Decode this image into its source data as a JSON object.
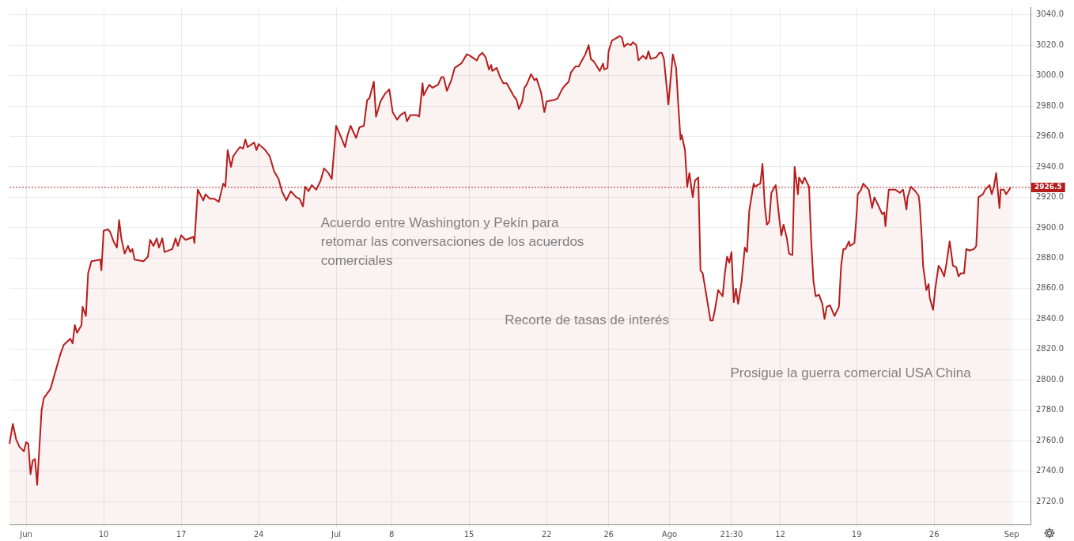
{
  "chart_data": {
    "type": "area",
    "grid": true,
    "legend": false,
    "marker": "none",
    "line_style": "solid",
    "categories": [
      null,
      null,
      null,
      null,
      null,
      null,
      null,
      null,
      null,
      null,
      null,
      null,
      null,
      null,
      null,
      "Jun",
      null,
      null,
      null,
      null,
      null,
      null,
      null,
      null,
      null,
      null,
      null,
      null,
      null,
      null,
      null,
      null,
      null,
      null,
      null,
      null,
      null,
      null,
      null,
      null,
      null,
      null,
      null,
      null,
      null,
      null,
      null,
      null,
      null,
      null,
      null,
      null,
      null,
      null,
      null,
      null,
      null,
      null,
      null,
      null,
      null,
      null,
      null,
      null,
      null,
      null,
      null,
      null,
      null,
      null,
      null,
      null,
      null,
      null,
      null,
      null,
      null,
      null,
      null,
      null,
      null,
      null,
      null,
      null,
      null,
      "10",
      null,
      null,
      null,
      null,
      null,
      null,
      null,
      null,
      null,
      null,
      null,
      null,
      null,
      null,
      null,
      null,
      null,
      null,
      null,
      null,
      null,
      null,
      null,
      null,
      null,
      null,
      null,
      null,
      null,
      null,
      null,
      null,
      null,
      null,
      null,
      null,
      null,
      null,
      null,
      null,
      null,
      null,
      null,
      null,
      null,
      null,
      null,
      null,
      null,
      null,
      null,
      null,
      null,
      null,
      null,
      null,
      null,
      null,
      null,
      null,
      null,
      null,
      null,
      null,
      null,
      null,
      null,
      null,
      null,
      "17",
      null,
      null,
      null,
      null,
      null,
      null,
      null,
      null,
      null,
      null,
      null,
      null,
      null,
      null,
      null,
      null,
      null,
      null,
      null,
      null,
      null,
      null,
      null,
      null,
      null,
      null,
      null,
      null,
      null,
      null,
      null,
      null,
      null,
      null,
      null,
      null,
      null,
      null,
      null,
      null,
      null,
      null,
      null,
      null,
      null,
      null,
      null,
      null,
      null,
      null,
      null,
      null,
      null,
      null,
      null,
      null,
      null,
      null,
      null,
      null,
      null,
      null,
      null,
      null,
      null,
      null,
      null,
      null,
      null,
      "24",
      null,
      null,
      null,
      null,
      null,
      null,
      null,
      null,
      null,
      null,
      null,
      null,
      null,
      null,
      null,
      null,
      null,
      null,
      null,
      null,
      null,
      null,
      null,
      null,
      null,
      null,
      null,
      null,
      null,
      null,
      null,
      null,
      null,
      null,
      null,
      null,
      null,
      null,
      null,
      null,
      null,
      null,
      null,
      null,
      null,
      null,
      null,
      null,
      null,
      null,
      null,
      null,
      null,
      null,
      null,
      null,
      null,
      null,
      null,
      null,
      null,
      null,
      null,
      null,
      null,
      null,
      null,
      null,
      null,
      "Jul",
      null,
      null,
      null,
      null,
      null,
      null,
      null,
      null,
      null,
      null,
      null,
      null,
      null,
      null,
      null,
      null,
      null,
      null,
      null,
      null,
      null,
      null,
      null,
      null,
      null,
      null,
      null,
      null,
      null,
      null,
      null,
      null,
      null,
      null,
      null,
      null,
      null,
      null,
      null,
      null,
      null,
      null,
      null,
      null,
      null,
      null,
      null,
      null,
      null,
      "8",
      null,
      null,
      null,
      null,
      null,
      null,
      null,
      null,
      null,
      null,
      null,
      null,
      null,
      null,
      null,
      null,
      null,
      null,
      null,
      null,
      null,
      null,
      null,
      null,
      null,
      null,
      null,
      null,
      null,
      null,
      null,
      null,
      null,
      null,
      null,
      null,
      null,
      null,
      null,
      null,
      null,
      null,
      null,
      null,
      null,
      null,
      null,
      null,
      null,
      null,
      null,
      null,
      null,
      null,
      null,
      null,
      null,
      null,
      null,
      null,
      null,
      null,
      null,
      null,
      null,
      null,
      null,
      null,
      null,
      "15",
      null,
      null,
      null,
      null,
      null,
      null,
      null,
      null,
      null,
      null,
      null,
      null,
      null,
      null,
      null,
      null,
      null,
      null,
      null,
      null,
      null,
      null,
      null,
      null,
      null,
      null,
      null,
      null,
      null,
      null,
      null,
      null,
      null,
      null,
      null,
      null,
      null,
      null,
      null,
      null,
      null,
      null,
      null,
      null,
      null,
      null,
      null,
      null,
      null,
      null,
      null,
      null,
      null,
      null,
      null,
      null,
      null,
      null,
      null,
      null,
      null,
      null,
      null,
      null,
      null,
      null,
      null,
      null,
      null,
      "22",
      null,
      null,
      null,
      null,
      null,
      null,
      null,
      null,
      null,
      null,
      null,
      null,
      null,
      null,
      null,
      null,
      null,
      null,
      null,
      null,
      null,
      null,
      null,
      null,
      null,
      null,
      null,
      null,
      null,
      null,
      null,
      null,
      null,
      null,
      null,
      null,
      null,
      null,
      null,
      null,
      null,
      null,
      null,
      null,
      null,
      null,
      null,
      null,
      null,
      null,
      null,
      null,
      null,
      null,
      null,
      "26",
      null,
      null,
      null,
      null,
      null,
      null,
      null,
      null,
      null,
      null,
      null,
      null,
      null,
      null,
      null,
      null,
      null,
      null,
      null,
      null,
      null,
      null,
      null,
      null,
      null,
      null,
      null,
      null,
      null,
      null,
      null,
      null,
      null,
      null,
      null,
      null,
      null,
      null,
      null,
      null,
      null,
      null,
      null,
      null,
      null,
      null,
      null,
      null,
      null,
      null,
      null,
      null,
      null,
      null,
      "Ago",
      null,
      null,
      null,
      null,
      null,
      null,
      null,
      null,
      null,
      null,
      null,
      null,
      null,
      null,
      null,
      null,
      null,
      null,
      null,
      null,
      null,
      null,
      null,
      null,
      null,
      null,
      null,
      null,
      null,
      null,
      null,
      null,
      null,
      null,
      null,
      null,
      null,
      null,
      null,
      null,
      null,
      null,
      null,
      null,
      null,
      null,
      null,
      null,
      null,
      null,
      null,
      null,
      null,
      null,
      null,
      "21:30",
      null,
      null,
      null,
      null,
      null,
      null,
      null,
      null,
      null,
      null,
      null,
      null,
      null,
      null,
      null,
      null,
      null,
      null,
      null,
      null,
      null,
      null,
      null,
      null,
      null,
      null,
      null,
      null,
      null,
      null,
      null,
      null,
      null,
      null,
      null,
      null,
      null,
      null,
      null,
      null,
      null,
      null,
      null,
      "12",
      null,
      null,
      null,
      null,
      null,
      null,
      null,
      null,
      null,
      null,
      null,
      null,
      null,
      null,
      null,
      null,
      null,
      null,
      null,
      null,
      null,
      null,
      null,
      null,
      null,
      null,
      null,
      null,
      null,
      null,
      null,
      null,
      null,
      null,
      null,
      null,
      null,
      null,
      null,
      null,
      null,
      null,
      null,
      null,
      null,
      null,
      null,
      null,
      null,
      null,
      null,
      null,
      null,
      null,
      null,
      null,
      null,
      null,
      null,
      null,
      null,
      null,
      null,
      null,
      null,
      null,
      null,
      null,
      "19",
      null,
      null,
      null,
      null,
      null,
      null,
      null,
      null,
      null,
      null,
      null,
      null,
      null,
      null,
      null,
      null,
      null,
      null,
      null,
      null,
      null,
      null,
      null,
      null,
      null,
      null,
      null,
      null,
      null,
      null,
      null,
      null,
      null,
      null,
      null,
      null,
      null,
      null,
      null,
      null,
      null,
      null,
      null,
      null,
      null,
      null,
      null,
      null,
      null,
      null,
      null,
      null,
      null,
      null,
      null,
      null,
      null,
      null,
      null,
      null,
      null,
      null,
      null,
      null,
      null,
      null,
      null,
      null,
      null,
      "26",
      null,
      null,
      null,
      null,
      null,
      null,
      null,
      null,
      null,
      null,
      null,
      null,
      null,
      null,
      null,
      null,
      null,
      null,
      null,
      null,
      null,
      null,
      null,
      null,
      null,
      null,
      null,
      null,
      null,
      null,
      null,
      null,
      null,
      null,
      null,
      null,
      null,
      null,
      null,
      null,
      null,
      null,
      null,
      null,
      null,
      null,
      null,
      null,
      null,
      null,
      null,
      null,
      null,
      null,
      null,
      null,
      null,
      null,
      null,
      null,
      null,
      null,
      null,
      null,
      null,
      null,
      null,
      null,
      null,
      "Sep",
      null,
      null,
      null,
      null,
      null,
      null,
      null,
      null,
      null,
      null,
      null,
      null,
      null,
      null,
      null,
      null,
      null
    ],
    "ylim": [
      2705,
      3045
    ],
    "yticks": [
      {
        "value": 2720,
        "label": "2720.0"
      },
      {
        "value": 2740,
        "label": "2740.0"
      },
      {
        "value": 2760,
        "label": "2760.0"
      },
      {
        "value": 2780,
        "label": "2780.0"
      },
      {
        "value": 2800,
        "label": "2800.0"
      },
      {
        "value": 2820,
        "label": "2820.0"
      },
      {
        "value": 2840,
        "label": "2840.0"
      },
      {
        "value": 2860,
        "label": "2860.0"
      },
      {
        "value": 2880,
        "label": "2880.0"
      },
      {
        "value": 2900,
        "label": "2900.0"
      },
      {
        "value": 2920,
        "label": "2920.0"
      },
      {
        "value": 2940,
        "label": "2940.0"
      },
      {
        "value": 2960,
        "label": "2960.0"
      },
      {
        "value": 2980,
        "label": "2980.0"
      },
      {
        "value": 3000,
        "label": "3000.0"
      },
      {
        "value": 3020,
        "label": "3020.0"
      },
      {
        "value": 3040,
        "label": "3040.0"
      }
    ],
    "ref_lines": [
      {
        "axis": "y",
        "value": 2926.5,
        "label": "2926.5",
        "color": "#b71c1c",
        "line_style": "dotted"
      }
    ],
    "annotations": [
      "Acuerdo entre Washington y Pekín para retomar las conversaciones de los acuerdos comerciales",
      "Recorte de tasas de interés",
      "Prosigue la guerra comercial USA China"
    ],
    "series": [
      {
        "color": "#b71c1c",
        "values": [
          2758,
          null,
          null,
          2771,
          null,
          null,
          2761,
          null,
          null,
          2756,
          null,
          null,
          null,
          2753,
          null,
          2759,
          null,
          2758,
          null,
          2738,
          null,
          2747,
          null,
          2748,
          null,
          2731,
          null,
          null,
          null,
          2780,
          null,
          2788,
          null,
          null,
          null,
          null,
          null,
          2794,
          null,
          null,
          null,
          null,
          null,
          null,
          null,
          null,
          2817,
          null,
          null,
          2823,
          null,
          null,
          null,
          null,
          null,
          2827,
          null,
          2824,
          null,
          2836,
          null,
          2831,
          null,
          null,
          null,
          2836,
          2848,
          null,
          null,
          2842,
          null,
          2870,
          null,
          null,
          2878,
          null,
          null,
          null,
          null,
          null,
          null,
          null,
          2879,
          2872,
          null,
          2898,
          null,
          null,
          null,
          2899,
          null,
          2897,
          null,
          null,
          2891,
          null,
          null,
          2887,
          null,
          2905,
          null,
          2893,
          null,
          null,
          2883,
          null,
          null,
          2888,
          null,
          2884,
          null,
          2886,
          null,
          2879,
          null,
          null,
          null,
          null,
          null,
          null,
          null,
          2878,
          null,
          null,
          null,
          2881,
          null,
          2892,
          null,
          null,
          2888,
          null,
          null,
          2893,
          null,
          2887,
          null,
          null,
          2893,
          null,
          2884,
          null,
          null,
          null,
          null,
          null,
          null,
          2886,
          null,
          null,
          2893,
          null,
          2888,
          null,
          null,
          2895,
          null,
          null,
          null,
          2892,
          null,
          null,
          null,
          null,
          null,
          null,
          2894,
          2890,
          null,
          null,
          2925,
          null,
          null,
          null,
          null,
          2918,
          null,
          2922,
          null,
          null,
          null,
          2919,
          null,
          null,
          null,
          2919,
          null,
          null,
          null,
          2917,
          null,
          null,
          null,
          2929,
          null,
          2927,
          null,
          2951,
          null,
          null,
          2940,
          null,
          2947,
          null,
          null,
          null,
          null,
          null,
          2953,
          null,
          null,
          2952,
          null,
          2958,
          null,
          2953,
          null,
          null,
          null,
          null,
          null,
          2956,
          null,
          2951,
          null,
          2955,
          null,
          null,
          null,
          null,
          null,
          2951,
          null,
          null,
          null,
          2947,
          null,
          null,
          null,
          2937,
          null,
          null,
          null,
          2932,
          null,
          null,
          2924,
          null,
          null,
          null,
          2918,
          null,
          null,
          null,
          2924,
          null,
          null,
          null,
          null,
          2920,
          null,
          null,
          2919,
          null,
          null,
          2914,
          null,
          2927,
          null,
          null,
          2924,
          null,
          null,
          2928,
          null,
          null,
          null,
          2925,
          null,
          null,
          null,
          2931,
          null,
          null,
          2939,
          null,
          null,
          null,
          2936,
          null,
          null,
          2932,
          null,
          null,
          null,
          2967,
          null,
          null,
          2962,
          null,
          null,
          null,
          null,
          2953,
          null,
          2960,
          null,
          null,
          2967,
          null,
          null,
          null,
          null,
          2959,
          null,
          null,
          2966,
          null,
          null,
          null,
          2967,
          null,
          null,
          2984,
          null,
          2985,
          null,
          null,
          null,
          2996,
          null,
          2973,
          null,
          null,
          null,
          2983,
          null,
          null,
          null,
          2988,
          null,
          null,
          null,
          2991,
          null,
          null,
          2976,
          null,
          null,
          null,
          2971,
          null,
          null,
          2974,
          null,
          null,
          null,
          2976,
          null,
          2970,
          null,
          null,
          2974,
          null,
          null,
          null,
          null,
          null,
          2974,
          null,
          2973,
          null,
          null,
          2995,
          2987,
          null,
          null,
          null,
          null,
          2994,
          null,
          null,
          2992,
          null,
          null,
          null,
          null,
          2994,
          null,
          null,
          2999,
          null,
          2999,
          null,
          null,
          2990,
          null,
          null,
          null,
          2997,
          null,
          null,
          3005,
          null,
          null,
          null,
          null,
          null,
          3008,
          null,
          null,
          null,
          null,
          3014,
          null,
          null,
          3013,
          null,
          null,
          null,
          null,
          null,
          3010,
          null,
          3013,
          null,
          null,
          3015,
          null,
          null,
          3012,
          null,
          null,
          3004,
          null,
          3007,
          3003,
          null,
          null,
          null,
          3005,
          null,
          null,
          2999,
          null,
          null,
          2995,
          null,
          null,
          2995,
          null,
          null,
          null,
          null,
          null,
          2987,
          null,
          null,
          2984,
          null,
          2978,
          null,
          null,
          2983,
          null,
          2992,
          null,
          2994,
          null,
          null,
          null,
          3001,
          null,
          null,
          2997,
          null,
          2998,
          null,
          null,
          null,
          2989,
          null,
          null,
          2976,
          null,
          2983,
          null,
          null,
          null,
          null,
          null,
          null,
          2984,
          null,
          null,
          2985,
          null,
          null,
          null,
          2991,
          null,
          2993,
          null,
          null,
          null,
          2996,
          null,
          3002,
          null,
          null,
          null,
          3006,
          null,
          null,
          3006,
          null,
          null,
          3010,
          null,
          null,
          3014,
          null,
          null,
          3020,
          null,
          3011,
          null,
          null,
          3009,
          null,
          null,
          null,
          null,
          3003,
          null,
          null,
          3008,
          3004,
          null,
          null,
          3005,
          3016,
          null,
          null,
          3023,
          null,
          null,
          null,
          null,
          null,
          null,
          3026,
          null,
          3025,
          null,
          3019,
          null,
          null,
          3021,
          null,
          null,
          3020,
          null,
          3022,
          null,
          null,
          3020,
          null,
          3010,
          null,
          null,
          null,
          3013,
          null,
          null,
          3011,
          null,
          3016,
          null,
          3011,
          null,
          null,
          null,
          null,
          3012,
          null,
          null,
          3015,
          null,
          3015,
          null,
          3011,
          null,
          null,
          null,
          2981,
          null,
          null,
          null,
          3014,
          null,
          null,
          3005,
          null,
          2980,
          null,
          2958,
          2961,
          null,
          null,
          2951,
          null,
          2927,
          null,
          2936,
          null,
          null,
          2920,
          null,
          2931,
          null,
          null,
          2933,
          null,
          2872,
          null,
          2870,
          null,
          null,
          2857,
          null,
          null,
          null,
          2839,
          null,
          2839,
          null,
          2846,
          null,
          null,
          2859,
          null,
          null,
          null,
          2855,
          null,
          2870,
          null,
          2881,
          null,
          2877,
          null,
          2884,
          null,
          2851,
          null,
          2860,
          null,
          2850,
          null,
          null,
          2864,
          null,
          null,
          2887,
          null,
          2884,
          null,
          2911,
          null,
          null,
          null,
          2929,
          2927,
          null,
          null,
          null,
          null,
          2929,
          null,
          2942,
          null,
          2915,
          null,
          2902,
          null,
          2904,
          null,
          2923,
          null,
          null,
          null,
          2928,
          null,
          null,
          2907,
          null,
          2895,
          null,
          2902,
          null,
          null,
          2893,
          null,
          2883,
          null,
          null,
          2882,
          null,
          2940,
          null,
          null,
          2922,
          2933,
          null,
          null,
          2929,
          null,
          2933,
          null,
          null,
          null,
          2927,
          null,
          2891,
          null,
          2865,
          null,
          2855,
          null,
          null,
          2856,
          null,
          null,
          2850,
          null,
          2840,
          null,
          2848,
          null,
          null,
          2849,
          null,
          null,
          null,
          2842,
          null,
          null,
          null,
          2848,
          null,
          2875,
          null,
          2886,
          null,
          2886,
          null,
          null,
          2891,
          2888,
          null,
          null,
          null,
          2890,
          null,
          2909,
          2922,
          null,
          null,
          2925,
          null,
          2929,
          null,
          null,
          null,
          null,
          2925,
          null,
          null,
          2913,
          null,
          2920,
          null,
          null,
          null,
          2914,
          null,
          null,
          2909,
          null,
          2910,
          2901,
          null,
          null,
          2925,
          null,
          null,
          null,
          null,
          null,
          2925,
          null,
          null,
          null,
          2923,
          null,
          null,
          2925,
          null,
          null,
          2912,
          2920,
          null,
          null,
          2927,
          null,
          null,
          null,
          2924,
          null,
          null,
          2921,
          2915,
          null,
          2891,
          2875,
          null,
          null,
          2859,
          null,
          2863,
          2854,
          null,
          null,
          2846,
          null,
          2860,
          null,
          null,
          2875,
          null,
          2873,
          null,
          null,
          2868,
          null,
          2876,
          null,
          null,
          2891,
          null,
          null,
          2875,
          null,
          null,
          2874,
          null,
          2868,
          null,
          2870,
          null,
          null,
          2870,
          null,
          2886,
          null,
          null,
          2885,
          null,
          null,
          null,
          2886,
          null,
          2888,
          null,
          2920,
          null,
          null,
          null,
          2922,
          null,
          2925,
          null,
          null,
          null,
          2928,
          null,
          2922,
          null,
          2927,
          null,
          2936,
          null,
          null,
          2913,
          2925,
          null,
          null,
          2925,
          null,
          2922,
          null,
          null,
          null,
          2926.5,
          null,
          null,
          null,
          null,
          null,
          null,
          null,
          null,
          null,
          null,
          null,
          null,
          null,
          null,
          null,
          null,
          null,
          null
        ]
      }
    ]
  }
}
